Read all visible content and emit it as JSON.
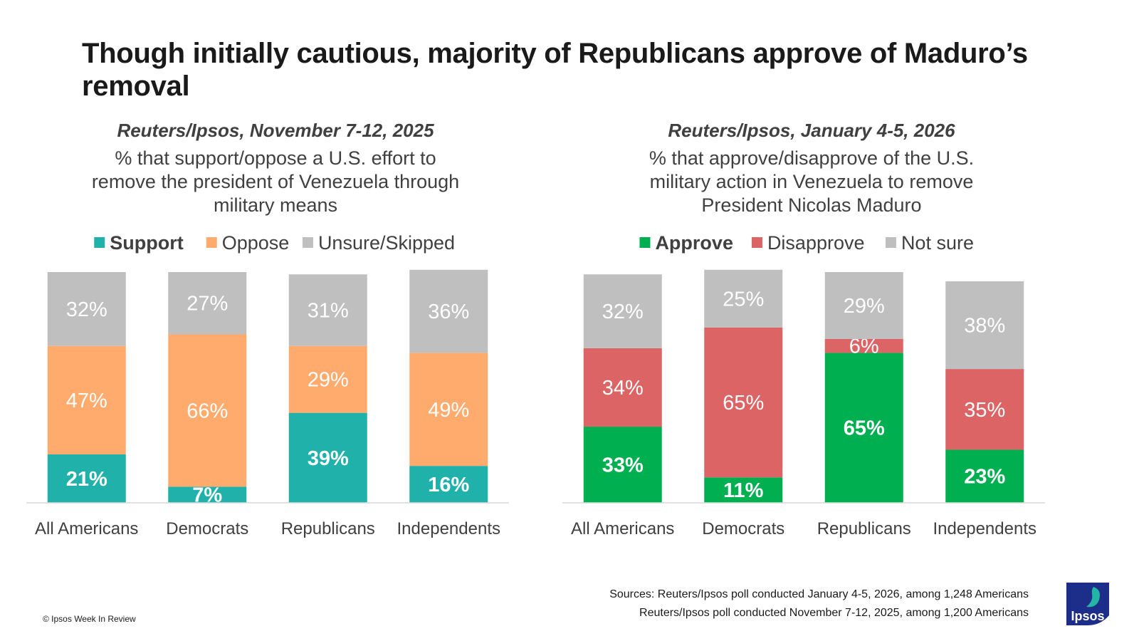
{
  "title": "Though initially cautious, majority of Republicans approve of Maduro’s removal",
  "colors": {
    "support": "#20B2AA",
    "oppose": "#FFAB6E",
    "unsure": "#BFBFBF",
    "approve": "#00B050",
    "disapprove": "#DC6464",
    "not_sure": "#BFBFBF",
    "label_light": "#ffffff",
    "label_bold": "#ffffff",
    "axis_text": "#404040"
  },
  "chart_data": [
    {
      "type": "bar",
      "stacked": true,
      "source": "Reuters/Ipsos, November 7-12, 2025",
      "title": "% that support/oppose a U.S. effort to remove the president of Venezuela through military means",
      "categories": [
        "All Americans",
        "Democrats",
        "Republicans",
        "Independents"
      ],
      "legend_position": "top",
      "ylim": [
        0,
        100
      ],
      "series": [
        {
          "name": "Support",
          "key": "support",
          "bold": true,
          "values": [
            21,
            7,
            39,
            16
          ],
          "labels": [
            "21%",
            "7%",
            "39%",
            "16%"
          ]
        },
        {
          "name": "Oppose",
          "key": "oppose",
          "bold": false,
          "values": [
            47,
            66,
            29,
            49
          ],
          "labels": [
            "47%",
            "66%",
            "29%",
            "49%"
          ]
        },
        {
          "name": "Unsure/Skipped",
          "key": "unsure",
          "bold": false,
          "values": [
            32,
            27,
            31,
            36
          ],
          "labels": [
            "32%",
            "27%",
            "31%",
            "36%"
          ]
        }
      ]
    },
    {
      "type": "bar",
      "stacked": true,
      "source": "Reuters/Ipsos, January 4-5, 2026",
      "title": "% that approve/disapprove of the U.S. military action in Venezuela to remove President Nicolas Maduro",
      "categories": [
        "All Americans",
        "Democrats",
        "Republicans",
        "Independents"
      ],
      "legend_position": "top",
      "ylim": [
        0,
        100
      ],
      "series": [
        {
          "name": "Approve",
          "key": "approve",
          "bold": true,
          "values": [
            33,
            11,
            65,
            23
          ],
          "labels": [
            "33%",
            "11%",
            "65%",
            "23%"
          ]
        },
        {
          "name": "Disapprove",
          "key": "disapprove",
          "bold": false,
          "values": [
            34,
            65,
            6,
            35
          ],
          "labels": [
            "34%",
            "65%",
            "6%",
            "35%"
          ]
        },
        {
          "name": "Not sure",
          "key": "not_sure",
          "bold": false,
          "values": [
            32,
            25,
            29,
            38
          ],
          "labels": [
            "32%",
            "25%",
            "29%",
            "38%"
          ]
        }
      ]
    }
  ],
  "footer": {
    "source_line1": "Sources: Reuters/Ipsos poll conducted January 4-5, 2026, among 1,248 Americans",
    "source_line2": "Reuters/Ipsos poll conducted November 7-12, 2025, among 1,200 Americans",
    "copyright": "© Ipsos Week In Review",
    "logo_text": "Ipsos"
  }
}
